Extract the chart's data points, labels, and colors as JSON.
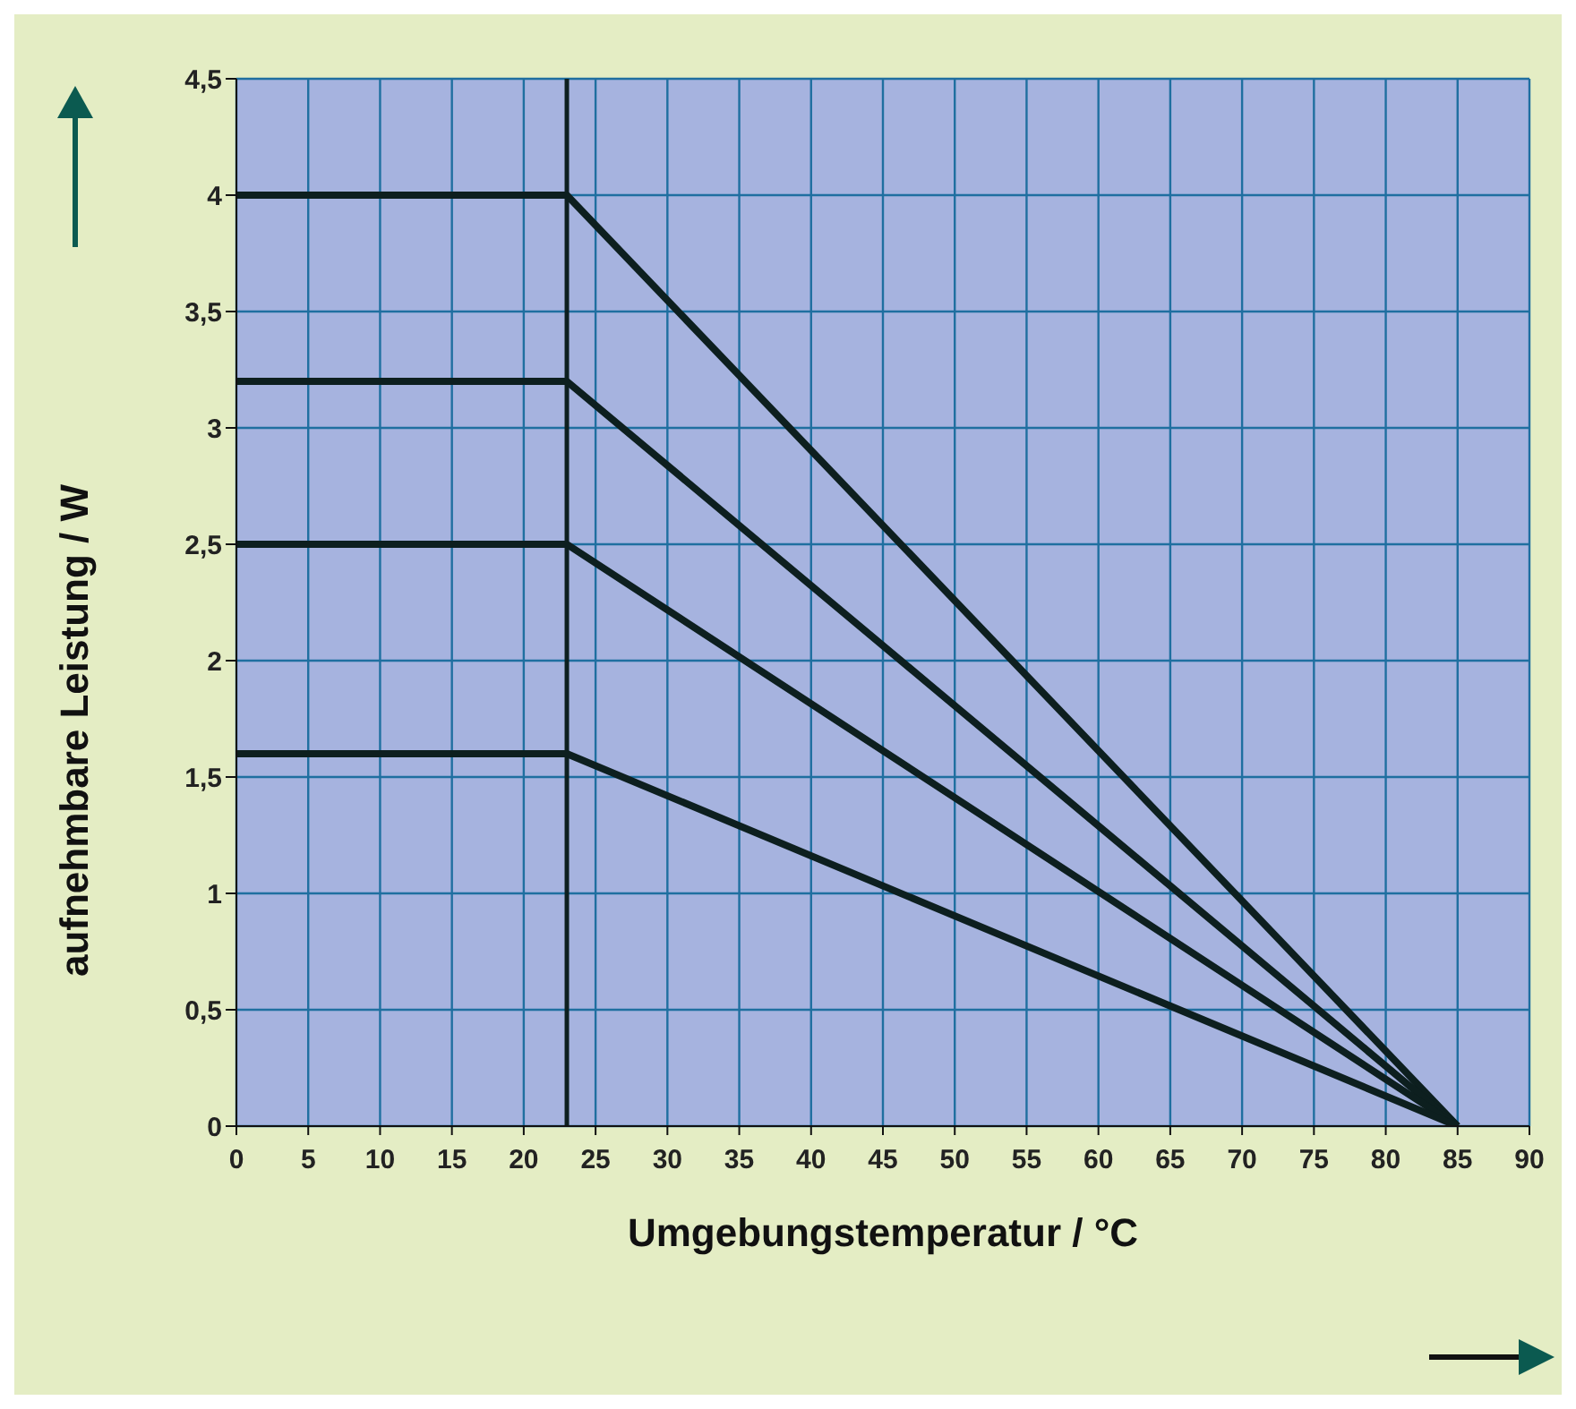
{
  "chart_data": {
    "type": "line",
    "xlabel": "Umgebungstemperatur / °C",
    "ylabel": "aufnehmbare Leistung / W",
    "x": [
      0,
      23,
      85
    ],
    "series": [
      {
        "color": "#0d1f1f",
        "values": [
          4,
          4,
          0
        ]
      },
      {
        "color": "#0d1f1f",
        "values": [
          3.2,
          3.2,
          0
        ]
      },
      {
        "color": "#0d1f1f",
        "values": [
          2.5,
          2.5,
          0
        ]
      },
      {
        "color": "#0d1f1f",
        "values": [
          1.6,
          1.6,
          0
        ]
      }
    ],
    "xlim": [
      0,
      90
    ],
    "xticks": [
      0,
      5,
      10,
      15,
      20,
      25,
      30,
      35,
      40,
      45,
      50,
      55,
      60,
      65,
      70,
      75,
      80,
      85,
      90
    ],
    "ylim": [
      0,
      4.5
    ],
    "yticks": [
      0,
      {
        "value": 0.5,
        "label": "0,5"
      },
      1,
      {
        "value": 1.5,
        "label": "1,5"
      },
      2,
      {
        "value": 2.5,
        "label": "2,5"
      },
      3,
      {
        "value": 3.5,
        "label": "3,5"
      },
      4,
      {
        "value": 4.5,
        "label": "4,5"
      }
    ],
    "ref_lines": [
      {
        "axis": "x",
        "value": 23,
        "color": "#0d1f1f"
      }
    ],
    "grid": true,
    "legend": false,
    "marker": "none",
    "line_style": "solid"
  }
}
